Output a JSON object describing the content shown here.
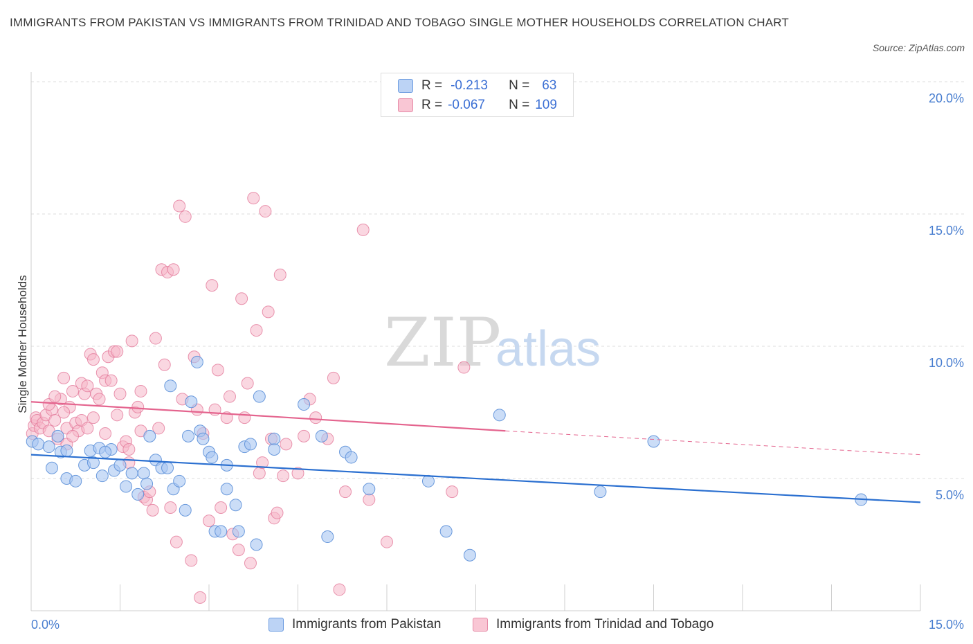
{
  "title": "IMMIGRANTS FROM PAKISTAN VS IMMIGRANTS FROM TRINIDAD AND TOBAGO SINGLE MOTHER HOUSEHOLDS CORRELATION CHART",
  "source": "Source: ZipAtlas.com",
  "watermark": {
    "zip": "ZIP",
    "atlas": "atlas"
  },
  "legend": {
    "r_label": "R =",
    "n_label": "N =",
    "series1": {
      "r": "-0.213",
      "n": "63"
    },
    "series2": {
      "r": "-0.067",
      "n": "109"
    }
  },
  "colors": {
    "pakistan_fill": "#a9c7f2",
    "pakistan_stroke": "#5b8fd8",
    "pakistan_line": "#2a6fd0",
    "trinidad_fill": "#f6b6c8",
    "trinidad_stroke": "#e37b9b",
    "trinidad_line": "#e4648e",
    "axis_tick": "#4a7fd0"
  },
  "chart_data": {
    "type": "scatter",
    "title": "IMMIGRANTS FROM PAKISTAN VS IMMIGRANTS FROM TRINIDAD AND TOBAGO SINGLE MOTHER HOUSEHOLDS CORRELATION CHART",
    "xlabel": "",
    "ylabel": "Single Mother Households",
    "xlim": [
      0,
      15
    ],
    "ylim": [
      0,
      20
    ],
    "x_tick_labels": [
      "0.0%",
      "15.0%"
    ],
    "y_tick_labels": [
      "5.0%",
      "10.0%",
      "15.0%",
      "20.0%"
    ],
    "grid": true,
    "legend_position": "bottom",
    "series": [
      {
        "name": "Immigrants from Pakistan",
        "color": "#a9c7f2",
        "trend": {
          "x": [
            0,
            15
          ],
          "y": [
            5.9,
            4.1
          ]
        },
        "points": [
          [
            0.02,
            6.4
          ],
          [
            0.12,
            6.3
          ],
          [
            0.3,
            6.2
          ],
          [
            0.35,
            5.4
          ],
          [
            0.5,
            6.0
          ],
          [
            0.6,
            5.0
          ],
          [
            0.75,
            4.9
          ],
          [
            0.6,
            6.05
          ],
          [
            0.9,
            5.5
          ],
          [
            1.0,
            6.05
          ],
          [
            1.05,
            5.6
          ],
          [
            1.15,
            6.15
          ],
          [
            1.2,
            5.1
          ],
          [
            1.35,
            6.1
          ],
          [
            1.4,
            5.3
          ],
          [
            1.5,
            5.5
          ],
          [
            1.6,
            4.7
          ],
          [
            1.7,
            5.2
          ],
          [
            1.8,
            4.4
          ],
          [
            1.9,
            5.2
          ],
          [
            1.95,
            4.8
          ],
          [
            2.0,
            6.6
          ],
          [
            2.1,
            5.7
          ],
          [
            2.2,
            5.4
          ],
          [
            2.3,
            5.4
          ],
          [
            2.35,
            8.5
          ],
          [
            2.4,
            4.6
          ],
          [
            2.5,
            4.9
          ],
          [
            2.6,
            3.8
          ],
          [
            2.65,
            6.6
          ],
          [
            2.7,
            7.9
          ],
          [
            2.8,
            9.4
          ],
          [
            2.85,
            6.8
          ],
          [
            2.9,
            6.5
          ],
          [
            3.0,
            6.0
          ],
          [
            3.05,
            5.8
          ],
          [
            3.1,
            3.0
          ],
          [
            3.2,
            3.0
          ],
          [
            3.3,
            4.6
          ],
          [
            3.3,
            5.5
          ],
          [
            3.45,
            4.0
          ],
          [
            3.5,
            3.0
          ],
          [
            3.6,
            6.2
          ],
          [
            3.7,
            6.3
          ],
          [
            3.8,
            2.5
          ],
          [
            3.85,
            8.1
          ],
          [
            4.1,
            6.1
          ],
          [
            4.1,
            6.5
          ],
          [
            4.6,
            7.8
          ],
          [
            4.9,
            6.6
          ],
          [
            5.0,
            2.8
          ],
          [
            5.3,
            6.0
          ],
          [
            5.4,
            5.8
          ],
          [
            5.7,
            4.6
          ],
          [
            6.7,
            4.9
          ],
          [
            7.0,
            3.0
          ],
          [
            7.4,
            2.1
          ],
          [
            7.9,
            7.4
          ],
          [
            9.6,
            4.5
          ],
          [
            10.5,
            6.4
          ],
          [
            14.0,
            4.2
          ],
          [
            0.45,
            6.6
          ],
          [
            1.25,
            6.0
          ]
        ]
      },
      {
        "name": "Immigrants from Trinidad and Tobago",
        "color": "#f6b6c8",
        "trend": {
          "x": [
            0,
            8
          ],
          "y": [
            7.9,
            6.8
          ]
        },
        "trend_extension": {
          "x": [
            8,
            15
          ],
          "y": [
            6.8,
            5.9
          ]
        },
        "points": [
          [
            0.02,
            6.7
          ],
          [
            0.05,
            7.0
          ],
          [
            0.08,
            7.3
          ],
          [
            0.1,
            7.2
          ],
          [
            0.15,
            6.9
          ],
          [
            0.2,
            7.1
          ],
          [
            0.25,
            7.4
          ],
          [
            0.3,
            6.8
          ],
          [
            0.35,
            7.6
          ],
          [
            0.4,
            7.2
          ],
          [
            0.45,
            6.5
          ],
          [
            0.5,
            8.0
          ],
          [
            0.55,
            8.8
          ],
          [
            0.6,
            6.9
          ],
          [
            0.65,
            7.7
          ],
          [
            0.7,
            8.3
          ],
          [
            0.75,
            7.1
          ],
          [
            0.8,
            6.8
          ],
          [
            0.85,
            8.6
          ],
          [
            0.9,
            8.2
          ],
          [
            0.95,
            8.5
          ],
          [
            1.0,
            9.7
          ],
          [
            1.05,
            9.5
          ],
          [
            1.1,
            8.2
          ],
          [
            1.15,
            8.0
          ],
          [
            1.2,
            9.0
          ],
          [
            1.25,
            8.7
          ],
          [
            1.3,
            9.6
          ],
          [
            1.35,
            8.7
          ],
          [
            1.4,
            9.8
          ],
          [
            1.45,
            9.8
          ],
          [
            1.5,
            8.2
          ],
          [
            1.55,
            6.2
          ],
          [
            1.6,
            6.4
          ],
          [
            1.65,
            5.6
          ],
          [
            1.7,
            10.2
          ],
          [
            1.75,
            7.5
          ],
          [
            1.8,
            7.7
          ],
          [
            1.85,
            8.3
          ],
          [
            1.9,
            4.3
          ],
          [
            1.95,
            4.2
          ],
          [
            2.0,
            4.5
          ],
          [
            2.05,
            3.8
          ],
          [
            2.1,
            10.3
          ],
          [
            2.15,
            6.9
          ],
          [
            2.2,
            12.9
          ],
          [
            2.25,
            9.3
          ],
          [
            2.3,
            12.8
          ],
          [
            2.35,
            3.9
          ],
          [
            2.4,
            12.9
          ],
          [
            2.45,
            2.6
          ],
          [
            2.5,
            15.3
          ],
          [
            2.55,
            8.0
          ],
          [
            2.6,
            14.9
          ],
          [
            2.7,
            1.9
          ],
          [
            2.75,
            9.6
          ],
          [
            2.8,
            7.6
          ],
          [
            2.85,
            0.5
          ],
          [
            2.9,
            6.7
          ],
          [
            3.0,
            3.4
          ],
          [
            3.05,
            12.3
          ],
          [
            3.1,
            7.6
          ],
          [
            3.15,
            9.1
          ],
          [
            3.2,
            3.9
          ],
          [
            3.3,
            7.3
          ],
          [
            3.35,
            8.1
          ],
          [
            3.4,
            2.9
          ],
          [
            3.5,
            2.3
          ],
          [
            3.55,
            11.8
          ],
          [
            3.6,
            7.3
          ],
          [
            3.65,
            8.6
          ],
          [
            3.7,
            1.8
          ],
          [
            3.75,
            15.6
          ],
          [
            3.8,
            10.6
          ],
          [
            3.85,
            5.2
          ],
          [
            3.9,
            5.6
          ],
          [
            3.95,
            15.1
          ],
          [
            4.0,
            11.3
          ],
          [
            4.05,
            6.5
          ],
          [
            4.1,
            3.5
          ],
          [
            4.15,
            3.7
          ],
          [
            4.2,
            12.7
          ],
          [
            4.25,
            5.1
          ],
          [
            4.3,
            6.3
          ],
          [
            4.5,
            5.2
          ],
          [
            4.6,
            6.6
          ],
          [
            4.7,
            8.0
          ],
          [
            4.8,
            7.3
          ],
          [
            5.0,
            6.5
          ],
          [
            5.1,
            8.8
          ],
          [
            5.2,
            0.8
          ],
          [
            5.3,
            4.5
          ],
          [
            5.6,
            14.4
          ],
          [
            5.7,
            4.2
          ],
          [
            6.0,
            2.6
          ],
          [
            7.1,
            4.5
          ],
          [
            7.3,
            9.2
          ],
          [
            0.3,
            7.8
          ],
          [
            0.4,
            8.1
          ],
          [
            0.55,
            7.5
          ],
          [
            0.6,
            6.3
          ],
          [
            0.7,
            6.6
          ],
          [
            0.85,
            7.2
          ],
          [
            0.95,
            6.9
          ],
          [
            1.05,
            7.3
          ],
          [
            1.25,
            6.7
          ],
          [
            1.45,
            7.4
          ],
          [
            1.65,
            6.1
          ],
          [
            1.85,
            6.8
          ]
        ]
      }
    ]
  }
}
